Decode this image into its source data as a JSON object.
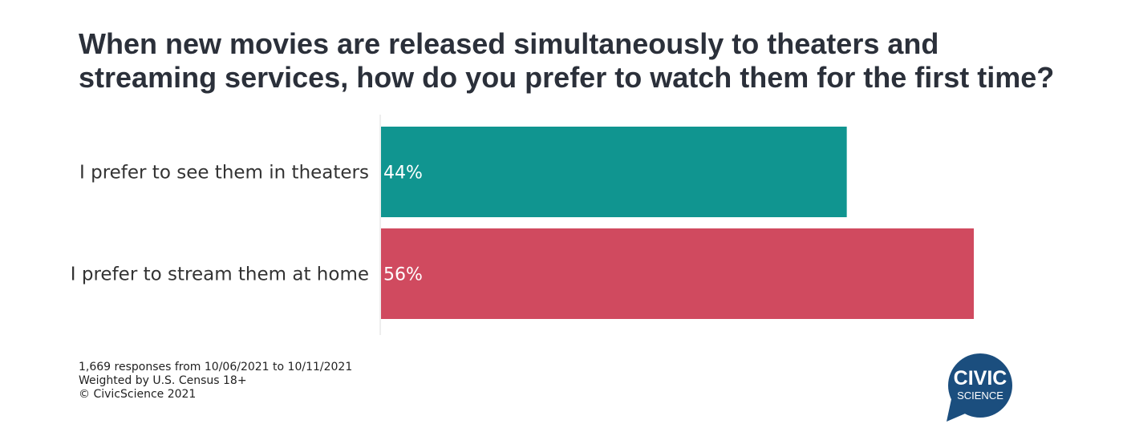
{
  "chart_data": {
    "type": "bar",
    "orientation": "horizontal",
    "title": "When new movies are released simultaneously to theaters and streaming services, how do you prefer to watch them for the first time?",
    "categories": [
      "I prefer to see them in theaters",
      "I prefer to stream them at home"
    ],
    "values": [
      44,
      56
    ],
    "value_labels": [
      "44%",
      "56%"
    ],
    "colors": [
      "#109590",
      "#d04a5f"
    ],
    "xlim": [
      0,
      56
    ],
    "grid": false,
    "legend": "none"
  },
  "footnote": {
    "lines": [
      "1,669 responses from 10/06/2021 to 10/11/2021",
      "Weighted by U.S. Census 18+",
      "© CivicScience 2021"
    ]
  },
  "logo": {
    "line1": "CIVIC",
    "line2": "SCIENCE",
    "color": "#1b4e7e"
  }
}
